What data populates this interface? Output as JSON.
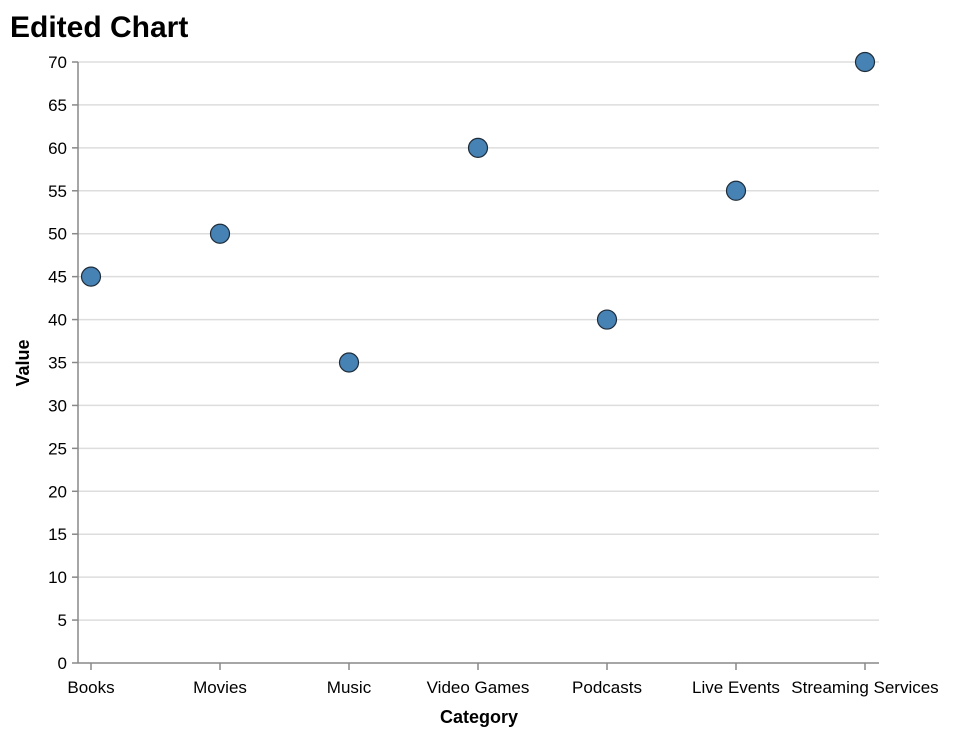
{
  "chart_data": {
    "type": "scatter",
    "title": "Edited Chart",
    "xlabel": "Category",
    "ylabel": "Value",
    "categories": [
      "Books",
      "Movies",
      "Music",
      "Video Games",
      "Podcasts",
      "Live Events",
      "Streaming Services"
    ],
    "values": [
      45,
      50,
      35,
      60,
      40,
      55,
      70
    ],
    "ylim": [
      0,
      70
    ],
    "yticks": [
      0,
      5,
      10,
      15,
      20,
      25,
      30,
      35,
      40,
      45,
      50,
      55,
      60,
      65,
      70
    ],
    "grid": true,
    "legend": "none",
    "colors": {
      "point_fill": "#4682b4",
      "point_stroke": "#1f2d3a",
      "grid": "#dddddd",
      "axis": "#888888"
    }
  }
}
